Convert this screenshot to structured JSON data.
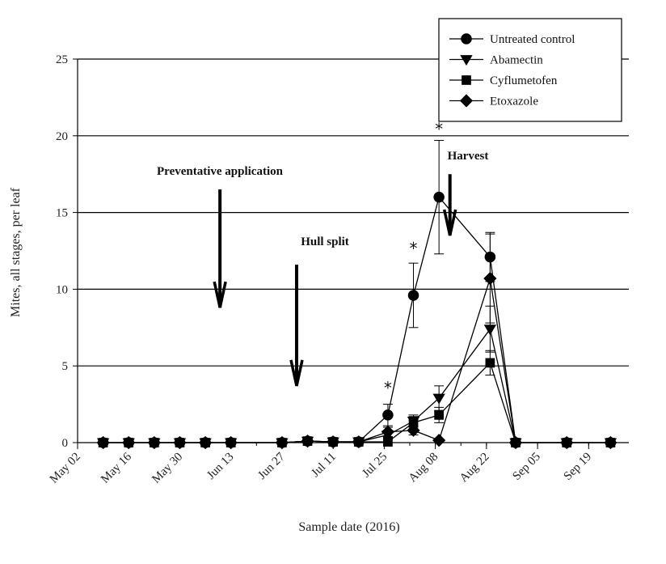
{
  "chart_data": {
    "type": "line",
    "title": "",
    "xlabel": "Sample date (2016)",
    "ylabel": "Mites, all stages, per leaf",
    "x_axis": {
      "type": "date",
      "year": 2016,
      "ticks": [
        {
          "label": "May 02",
          "date": "2016-05-02"
        },
        {
          "label": "May 16",
          "date": "2016-05-16"
        },
        {
          "label": "May 30",
          "date": "2016-05-30"
        },
        {
          "label": "Jun 13",
          "date": "2016-06-13"
        },
        {
          "label": "Jun 27",
          "date": "2016-06-27"
        },
        {
          "label": "Jul 11",
          "date": "2016-07-11"
        },
        {
          "label": "Jul 25",
          "date": "2016-07-25"
        },
        {
          "label": "Aug 08",
          "date": "2016-08-08"
        },
        {
          "label": "Aug 22",
          "date": "2016-08-22"
        },
        {
          "label": "Sep 05",
          "date": "2016-09-05"
        },
        {
          "label": "Sep 19",
          "date": "2016-09-19"
        }
      ],
      "range": [
        "2016-05-02",
        "2016-09-30"
      ]
    },
    "ylim": [
      0,
      25
    ],
    "yticks": [
      "0",
      "5",
      "10",
      "15",
      "20",
      "25"
    ],
    "grid": "horizontal",
    "legend_position": "top-right",
    "series": [
      {
        "name": "Untreated control",
        "marker": "circle",
        "points": [
          {
            "x": "2016-05-09",
            "y": 0
          },
          {
            "x": "2016-05-16",
            "y": 0
          },
          {
            "x": "2016-05-23",
            "y": 0
          },
          {
            "x": "2016-05-30",
            "y": 0
          },
          {
            "x": "2016-06-06",
            "y": 0
          },
          {
            "x": "2016-06-13",
            "y": 0
          },
          {
            "x": "2016-06-27",
            "y": 0
          },
          {
            "x": "2016-07-04",
            "y": 0.1
          },
          {
            "x": "2016-07-11",
            "y": 0.05
          },
          {
            "x": "2016-07-18",
            "y": 0.05
          },
          {
            "x": "2016-07-26",
            "y": 1.8,
            "err": 0.7
          },
          {
            "x": "2016-08-02",
            "y": 9.6,
            "err": 2.1
          },
          {
            "x": "2016-08-09",
            "y": 16,
            "err": 3.7
          },
          {
            "x": "2016-08-23",
            "y": 12.1,
            "err": 1.6
          },
          {
            "x": "2016-08-30",
            "y": 0
          },
          {
            "x": "2016-09-13",
            "y": 0
          },
          {
            "x": "2016-09-25",
            "y": 0
          }
        ]
      },
      {
        "name": "Abamectin",
        "marker": "triangle-down",
        "points": [
          {
            "x": "2016-05-09",
            "y": 0
          },
          {
            "x": "2016-05-16",
            "y": 0
          },
          {
            "x": "2016-05-23",
            "y": 0
          },
          {
            "x": "2016-05-30",
            "y": 0
          },
          {
            "x": "2016-06-06",
            "y": 0
          },
          {
            "x": "2016-06-13",
            "y": 0
          },
          {
            "x": "2016-06-27",
            "y": 0
          },
          {
            "x": "2016-07-04",
            "y": 0.1
          },
          {
            "x": "2016-07-11",
            "y": 0.05
          },
          {
            "x": "2016-07-18",
            "y": 0.05
          },
          {
            "x": "2016-07-26",
            "y": 0.5,
            "err": 0.3
          },
          {
            "x": "2016-08-02",
            "y": 1.4,
            "err": 0.4
          },
          {
            "x": "2016-08-09",
            "y": 2.9,
            "err": 0.8
          },
          {
            "x": "2016-08-23",
            "y": 7.4,
            "err": 1.5
          },
          {
            "x": "2016-08-30",
            "y": 0
          },
          {
            "x": "2016-09-13",
            "y": 0
          },
          {
            "x": "2016-09-25",
            "y": 0
          }
        ]
      },
      {
        "name": "Cyflumetofen",
        "marker": "square",
        "points": [
          {
            "x": "2016-05-09",
            "y": 0
          },
          {
            "x": "2016-05-16",
            "y": 0
          },
          {
            "x": "2016-05-23",
            "y": 0
          },
          {
            "x": "2016-05-30",
            "y": 0
          },
          {
            "x": "2016-06-06",
            "y": 0
          },
          {
            "x": "2016-06-13",
            "y": 0
          },
          {
            "x": "2016-06-27",
            "y": 0
          },
          {
            "x": "2016-07-04",
            "y": 0.1
          },
          {
            "x": "2016-07-11",
            "y": 0.05
          },
          {
            "x": "2016-07-18",
            "y": 0.05
          },
          {
            "x": "2016-07-26",
            "y": 0.05,
            "err": 0.3
          },
          {
            "x": "2016-08-02",
            "y": 1.3,
            "err": 0.4
          },
          {
            "x": "2016-08-09",
            "y": 1.8,
            "err": 0.5
          },
          {
            "x": "2016-08-23",
            "y": 5.2,
            "err": 0.8
          },
          {
            "x": "2016-08-30",
            "y": 0
          },
          {
            "x": "2016-09-13",
            "y": 0
          },
          {
            "x": "2016-09-25",
            "y": 0
          }
        ]
      },
      {
        "name": "Etoxazole",
        "marker": "diamond",
        "points": [
          {
            "x": "2016-05-09",
            "y": 0
          },
          {
            "x": "2016-05-16",
            "y": 0
          },
          {
            "x": "2016-05-23",
            "y": 0
          },
          {
            "x": "2016-05-30",
            "y": 0
          },
          {
            "x": "2016-06-06",
            "y": 0
          },
          {
            "x": "2016-06-13",
            "y": 0
          },
          {
            "x": "2016-06-27",
            "y": 0
          },
          {
            "x": "2016-07-04",
            "y": 0.1
          },
          {
            "x": "2016-07-11",
            "y": 0.05
          },
          {
            "x": "2016-07-18",
            "y": 0.05
          },
          {
            "x": "2016-07-26",
            "y": 0.7,
            "err": 0.3
          },
          {
            "x": "2016-08-02",
            "y": 0.8,
            "err": 0.3
          },
          {
            "x": "2016-08-09",
            "y": 0.15
          },
          {
            "x": "2016-08-23",
            "y": 10.7,
            "err": 2.9
          },
          {
            "x": "2016-08-30",
            "y": 0
          },
          {
            "x": "2016-09-13",
            "y": 0
          },
          {
            "x": "2016-09-25",
            "y": 0
          }
        ]
      }
    ],
    "annotations": [
      {
        "text": "Preventative application",
        "arrow": true,
        "arrow_date": "2016-06-10",
        "arrow_y_from": 16.5,
        "arrow_y_to": 8.8
      },
      {
        "text": "Hull split",
        "arrow": true,
        "arrow_date": "2016-07-01",
        "arrow_y_from": 11.6,
        "arrow_y_to": 3.7
      },
      {
        "text": "Harvest",
        "arrow": true,
        "arrow_date": "2016-08-12",
        "arrow_y_from": 17.5,
        "arrow_y_to": 13.5
      }
    ],
    "significance_marks": [
      {
        "text": "*",
        "x": "2016-07-26",
        "y": 3.6
      },
      {
        "text": "*",
        "x": "2016-08-02",
        "y": 12.7
      },
      {
        "text": "*",
        "x": "2016-08-09",
        "y": 20.5
      }
    ]
  }
}
